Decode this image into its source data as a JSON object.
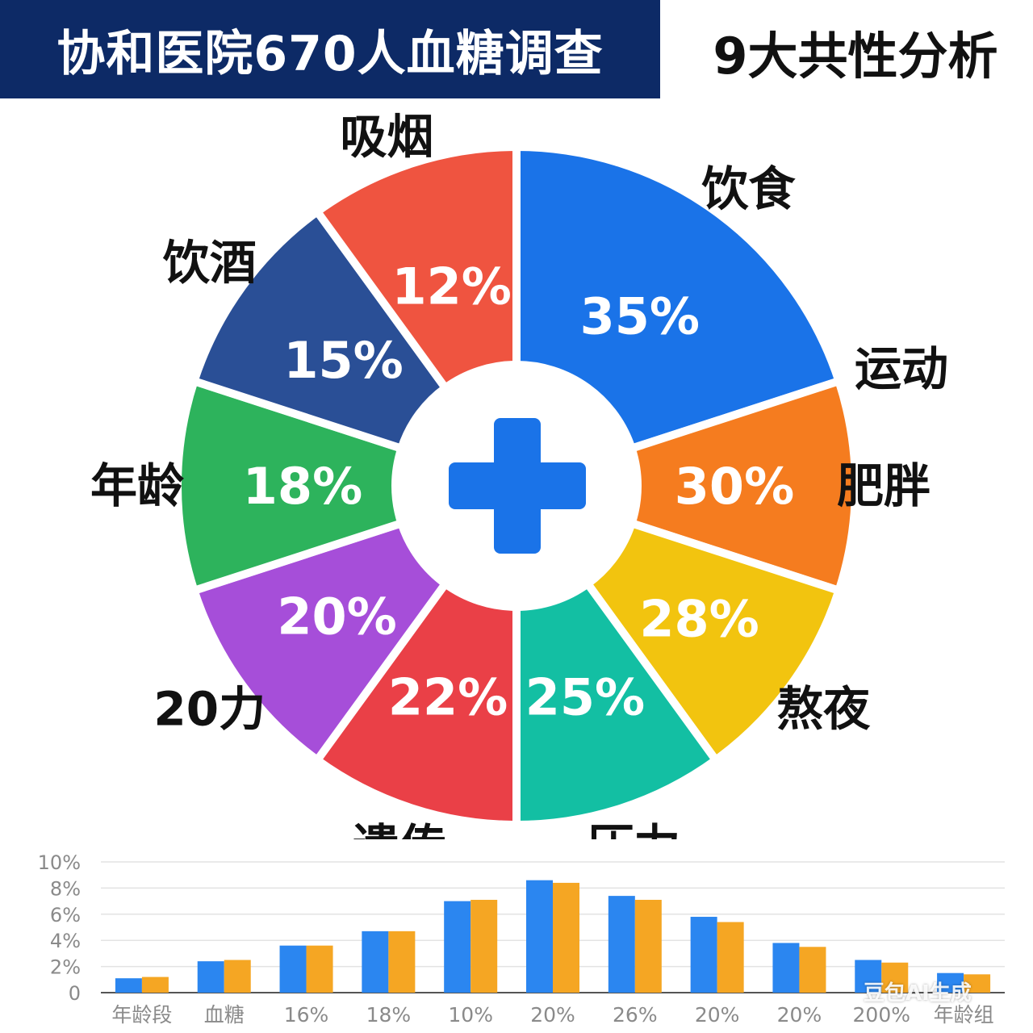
{
  "header": {
    "title": "协和医院670人血糖调查",
    "subtitle": "9大共性分析"
  },
  "watermark": "豆包AI生成",
  "center_icon": "medical-cross-icon",
  "colors": {
    "title_bg": "#0d2a66",
    "cross": "#1a73e8",
    "bar_series_1": "#2b86f0",
    "bar_series_2": "#f5a623"
  },
  "chart_data": [
    {
      "type": "pie",
      "title": "",
      "slices": [
        {
          "label": "饮食",
          "value": 35,
          "value_label": "35%",
          "color": "#1a73e8"
        },
        {
          "label": "肥胖",
          "value": 30,
          "value_label": "30%",
          "color": "#f57c1f"
        },
        {
          "label": "熬夜",
          "value": 28,
          "value_label": "28%",
          "color": "#f2c40f"
        },
        {
          "label": "压力",
          "value": 25,
          "value_label": "25%",
          "color": "#13bfa3"
        },
        {
          "label": "遗传",
          "value": 22,
          "value_label": "22%",
          "color": "#ea4047"
        },
        {
          "label": "20力",
          "value": 20,
          "value_label": "20%",
          "color": "#a64ed9"
        },
        {
          "label": "年龄",
          "value": 18,
          "value_label": "18%",
          "color": "#2db35c"
        },
        {
          "label": "饮酒",
          "value": 15,
          "value_label": "15%",
          "color": "#2a4f96"
        },
        {
          "label": "吸烟",
          "value": 12,
          "value_label": "12%",
          "color": "#ef5440"
        }
      ],
      "extra_labels": [
        "运动"
      ]
    },
    {
      "type": "bar",
      "title": "",
      "xlabel": "",
      "ylabel": "",
      "categories": [
        "年龄段",
        "血糖",
        "16%",
        "18%",
        "10%",
        "20%",
        "26%",
        "20%",
        "20%",
        "200%",
        "年龄组"
      ],
      "series": [
        {
          "values": [
            1.1,
            2.4,
            3.6,
            4.7,
            7.0,
            8.6,
            7.4,
            5.8,
            3.8,
            2.5,
            1.5
          ]
        },
        {
          "values": [
            1.2,
            2.5,
            3.6,
            4.7,
            7.1,
            8.4,
            7.1,
            5.4,
            3.5,
            2.3,
            1.4
          ]
        }
      ],
      "ylim": [
        0,
        10
      ],
      "yticks": [
        "0",
        "2%",
        "4%",
        "6%",
        "8%",
        "10%"
      ],
      "grid": true
    }
  ]
}
